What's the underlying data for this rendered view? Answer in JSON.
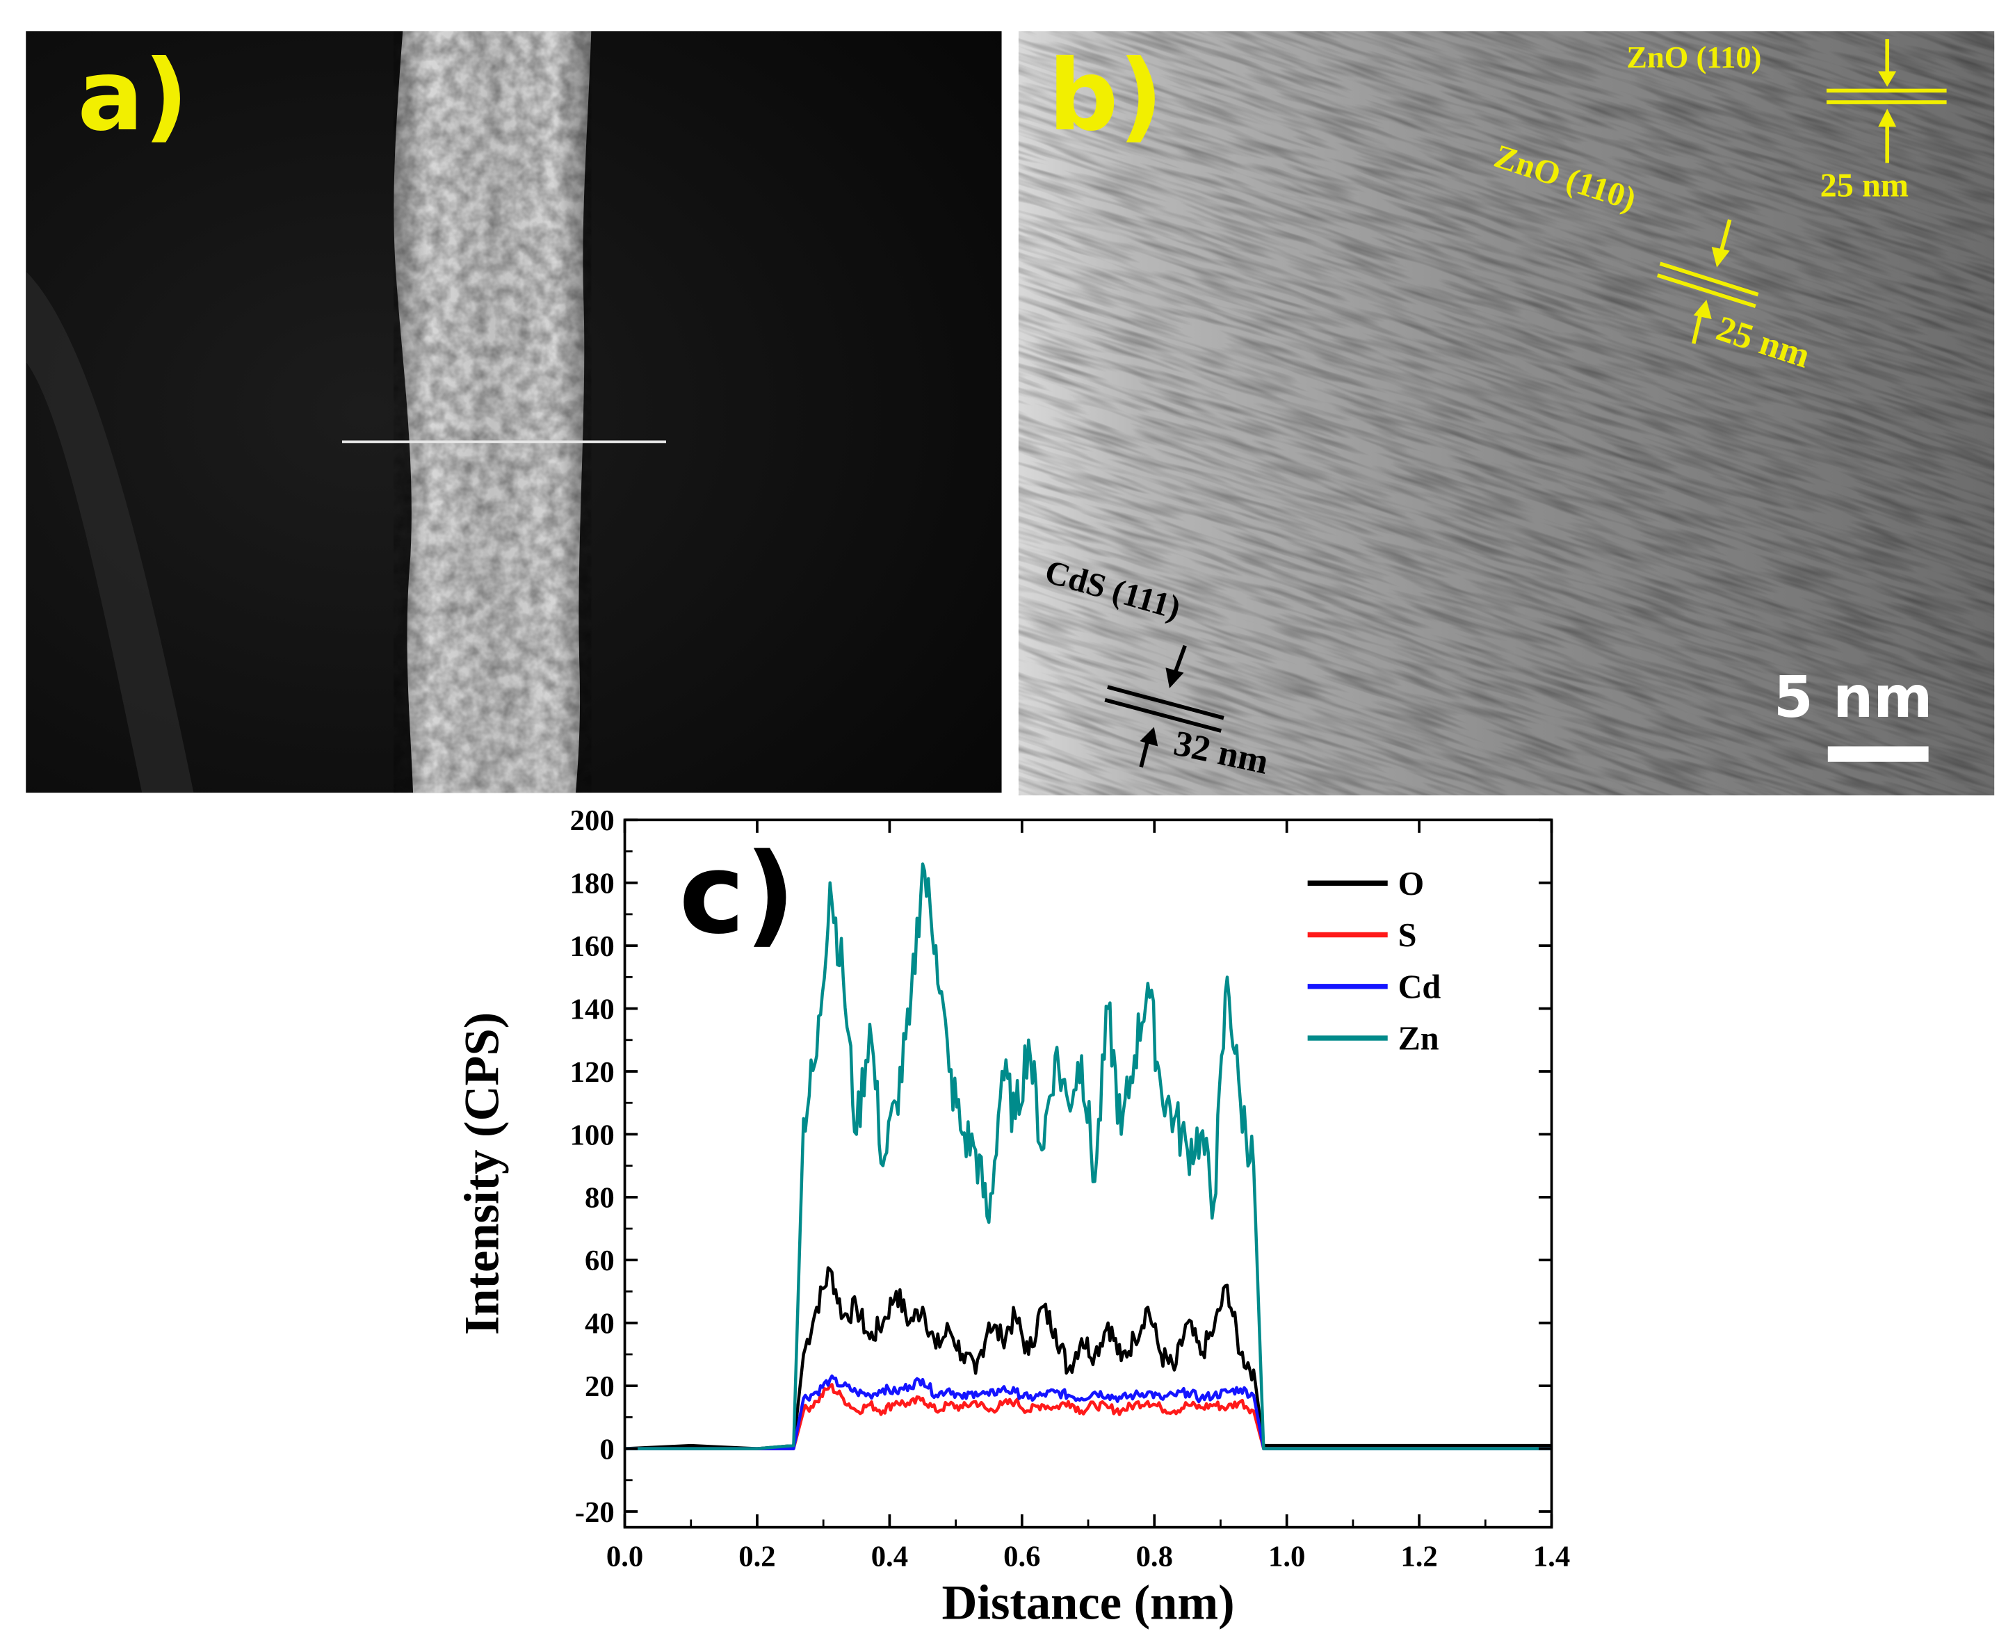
{
  "colors": {
    "annot_yellow": "#f2ef00",
    "O": "#000000",
    "S": "#ff1a1a",
    "Cd": "#1414ff",
    "Zn": "#008b8b"
  },
  "panel_a": {
    "label": "a)"
  },
  "panel_b": {
    "label": "b)",
    "annotations": [
      {
        "plane": "ZnO (110)",
        "spacing": "25 nm"
      },
      {
        "plane": "ZnO (110)",
        "spacing": "25 nm"
      },
      {
        "plane": "CdS (111)",
        "spacing": "32 nm"
      }
    ],
    "scale_bar": "5 nm"
  },
  "panel_c": {
    "label": "c)"
  },
  "chart_data": {
    "type": "line",
    "xlabel": "Distance (nm)",
    "ylabel": "Intensity (CPS)",
    "xlim": [
      0.0,
      1.4
    ],
    "ylim": [
      -25,
      200
    ],
    "xticks": [
      0.0,
      0.2,
      0.4,
      0.6,
      0.8,
      1.0,
      1.2,
      1.4
    ],
    "xtick_labels": [
      "0.0",
      "0.2",
      "0.4",
      "0.6",
      "0.8",
      "1.0",
      "1.2",
      "1.4"
    ],
    "yticks": [
      -20,
      0,
      20,
      40,
      60,
      80,
      100,
      120,
      140,
      160,
      180,
      200
    ],
    "ytick_labels": [
      "-20",
      "0",
      "20",
      "40",
      "60",
      "80",
      "100",
      "120",
      "140",
      "160",
      "180",
      "200"
    ],
    "legend_position": "top-right",
    "grid": false,
    "x": [
      0.0,
      0.1,
      0.2,
      0.255,
      0.27,
      0.29,
      0.31,
      0.33,
      0.35,
      0.37,
      0.39,
      0.41,
      0.43,
      0.45,
      0.47,
      0.49,
      0.51,
      0.53,
      0.55,
      0.57,
      0.59,
      0.61,
      0.63,
      0.65,
      0.67,
      0.69,
      0.71,
      0.73,
      0.75,
      0.77,
      0.79,
      0.81,
      0.83,
      0.85,
      0.87,
      0.89,
      0.91,
      0.93,
      0.95,
      0.965,
      1.0,
      1.1,
      1.2,
      1.3,
      1.4
    ],
    "series": [
      {
        "name": "O",
        "values": [
          0,
          1,
          0,
          1,
          30,
          45,
          57,
          42,
          45,
          35,
          40,
          50,
          40,
          45,
          32,
          38,
          30,
          24,
          40,
          35,
          42,
          30,
          45,
          38,
          25,
          35,
          30,
          40,
          28,
          35,
          45,
          30,
          25,
          40,
          30,
          38,
          52,
          30,
          25,
          1,
          1,
          1,
          1,
          1,
          1
        ]
      },
      {
        "name": "S",
        "values": [
          0,
          0,
          0,
          0,
          12,
          15,
          20,
          16,
          12,
          14,
          12,
          15,
          14,
          16,
          12,
          14,
          13,
          15,
          12,
          14,
          15,
          12,
          14,
          13,
          15,
          12,
          14,
          13,
          12,
          14,
          15,
          13,
          12,
          14,
          13,
          14,
          13,
          15,
          12,
          0,
          0,
          0,
          0,
          0,
          0
        ]
      },
      {
        "name": "Cd",
        "values": [
          0,
          0,
          0,
          0,
          16,
          18,
          22,
          20,
          18,
          17,
          19,
          18,
          20,
          22,
          17,
          19,
          16,
          18,
          17,
          19,
          18,
          16,
          17,
          18,
          17,
          16,
          18,
          17,
          16,
          17,
          18,
          16,
          17,
          18,
          16,
          17,
          18,
          19,
          17,
          0,
          0,
          0,
          0,
          0,
          0
        ]
      },
      {
        "name": "Zn",
        "values": [
          0,
          0,
          0,
          1,
          105,
          125,
          180,
          150,
          100,
          135,
          90,
          110,
          135,
          186,
          160,
          120,
          100,
          95,
          72,
          120,
          105,
          130,
          95,
          125,
          110,
          125,
          85,
          140,
          100,
          125,
          148,
          115,
          105,
          95,
          100,
          78,
          150,
          110,
          90,
          0,
          0,
          0,
          0,
          0,
          0
        ]
      }
    ]
  }
}
